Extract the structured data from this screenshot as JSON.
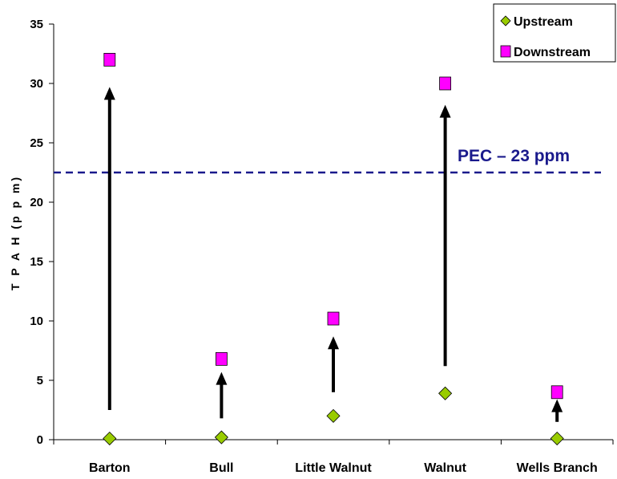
{
  "chart_data": {
    "type": "scatter",
    "categories": [
      "Barton",
      "Bull",
      "Little Walnut",
      "Walnut",
      "Wells Branch"
    ],
    "series": [
      {
        "name": "Upstream",
        "values": [
          0.1,
          0.2,
          2.0,
          3.9,
          0.1
        ],
        "color": "#99cc00",
        "marker": "diamond"
      },
      {
        "name": "Downstream",
        "values": [
          32.0,
          6.8,
          10.2,
          30.0,
          4.0
        ],
        "color": "#ff00ff",
        "marker": "square"
      }
    ],
    "ylabel": "T P A H  (p p m)",
    "xlabel": "",
    "ylim": [
      0,
      35
    ],
    "yticks": [
      0,
      5,
      10,
      15,
      20,
      25,
      30,
      35
    ],
    "grid": false,
    "legend": {
      "position": "top-right",
      "entries": [
        "Upstream",
        "Downstream"
      ]
    },
    "reference_line": {
      "value": 22.5,
      "label": "PEC – 23 ppm",
      "color": "#1a1a8c",
      "style": "dashed"
    },
    "arrows": [
      {
        "category": "Barton",
        "from": 2.5,
        "to": 29.5
      },
      {
        "category": "Bull",
        "from": 1.8,
        "to": 5.5
      },
      {
        "category": "Little Walnut",
        "from": 4.0,
        "to": 8.5
      },
      {
        "category": "Walnut",
        "from": 6.2,
        "to": 28.0
      },
      {
        "category": "Wells Branch",
        "from": 1.5,
        "to": 3.2
      }
    ]
  }
}
